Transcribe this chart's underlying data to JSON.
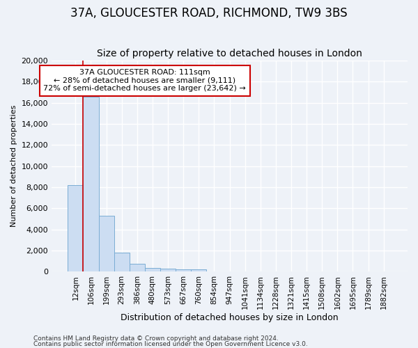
{
  "title": "37A, GLOUCESTER ROAD, RICHMOND, TW9 3BS",
  "subtitle": "Size of property relative to detached houses in London",
  "xlabel": "Distribution of detached houses by size in London",
  "ylabel": "Number of detached properties",
  "bar_labels": [
    "12sqm",
    "106sqm",
    "199sqm",
    "293sqm",
    "386sqm",
    "480sqm",
    "573sqm",
    "667sqm",
    "760sqm",
    "854sqm",
    "947sqm",
    "1041sqm",
    "1134sqm",
    "1228sqm",
    "1321sqm",
    "1415sqm",
    "1508sqm",
    "1602sqm",
    "1695sqm",
    "1789sqm",
    "1882sqm"
  ],
  "bar_values": [
    8200,
    16600,
    5300,
    1800,
    750,
    350,
    300,
    250,
    200,
    0,
    0,
    0,
    0,
    0,
    0,
    0,
    0,
    0,
    0,
    0,
    0
  ],
  "bar_color": "#ccddf2",
  "bar_edge_color": "#7aadd4",
  "ylim": [
    0,
    20000
  ],
  "yticks": [
    0,
    2000,
    4000,
    6000,
    8000,
    10000,
    12000,
    14000,
    16000,
    18000,
    20000
  ],
  "red_line_x": 0.5,
  "property_label": "37A GLOUCESTER ROAD: 111sqm",
  "annotation_line1": "← 28% of detached houses are smaller (9,111)",
  "annotation_line2": "72% of semi-detached houses are larger (23,642) →",
  "red_color": "#cc0000",
  "footer1": "Contains HM Land Registry data © Crown copyright and database right 2024.",
  "footer2": "Contains public sector information licensed under the Open Government Licence v3.0.",
  "bg_color": "#eef2f8",
  "grid_color": "#ffffff",
  "title_fontsize": 12,
  "subtitle_fontsize": 10,
  "ylabel_fontsize": 8,
  "xlabel_fontsize": 9,
  "tick_fontsize": 8,
  "xtick_fontsize": 7.5,
  "annot_fontsize": 8,
  "footer_fontsize": 6.5
}
